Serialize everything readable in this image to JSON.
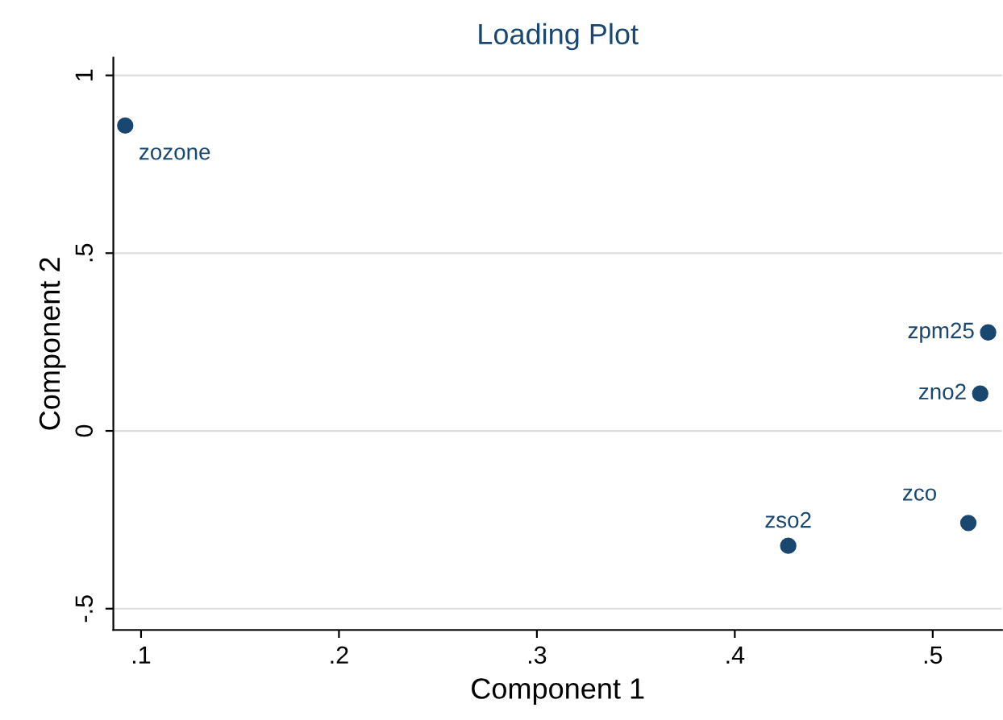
{
  "chart_data": {
    "type": "scatter",
    "title": "Loading Plot",
    "xlabel": "Component 1",
    "ylabel": "Component 2",
    "x": [
      0.092,
      0.528,
      0.524,
      0.518,
      0.427
    ],
    "series": [
      {
        "color": "#1a476f",
        "values": [
          0.859,
          0.277,
          0.105,
          -0.259,
          -0.323
        ]
      }
    ],
    "annotations": [
      {
        "text": "zozone",
        "x": 0.092,
        "y": 0.859
      },
      {
        "text": "zpm25",
        "x": 0.528,
        "y": 0.277
      },
      {
        "text": "zno2",
        "x": 0.524,
        "y": 0.105
      },
      {
        "text": "zco",
        "x": 0.518,
        "y": -0.259
      },
      {
        "text": "zso2",
        "x": 0.427,
        "y": -0.323
      }
    ],
    "xlim": [
      0.086,
      0.535
    ],
    "ylim": [
      -0.56,
      1.05
    ],
    "xticks": [
      {
        "value": 0.1,
        "label": ".1"
      },
      {
        "value": 0.2,
        "label": ".2"
      },
      {
        "value": 0.3,
        "label": ".3"
      },
      {
        "value": 0.4,
        "label": ".4"
      },
      {
        "value": 0.5,
        "label": ".5"
      }
    ],
    "yticks": [
      {
        "value": -0.5,
        "label": "-.5"
      },
      0,
      {
        "value": 0.5,
        "label": ".5"
      },
      1
    ],
    "grid": "y",
    "marker": "circle",
    "legend": false
  }
}
